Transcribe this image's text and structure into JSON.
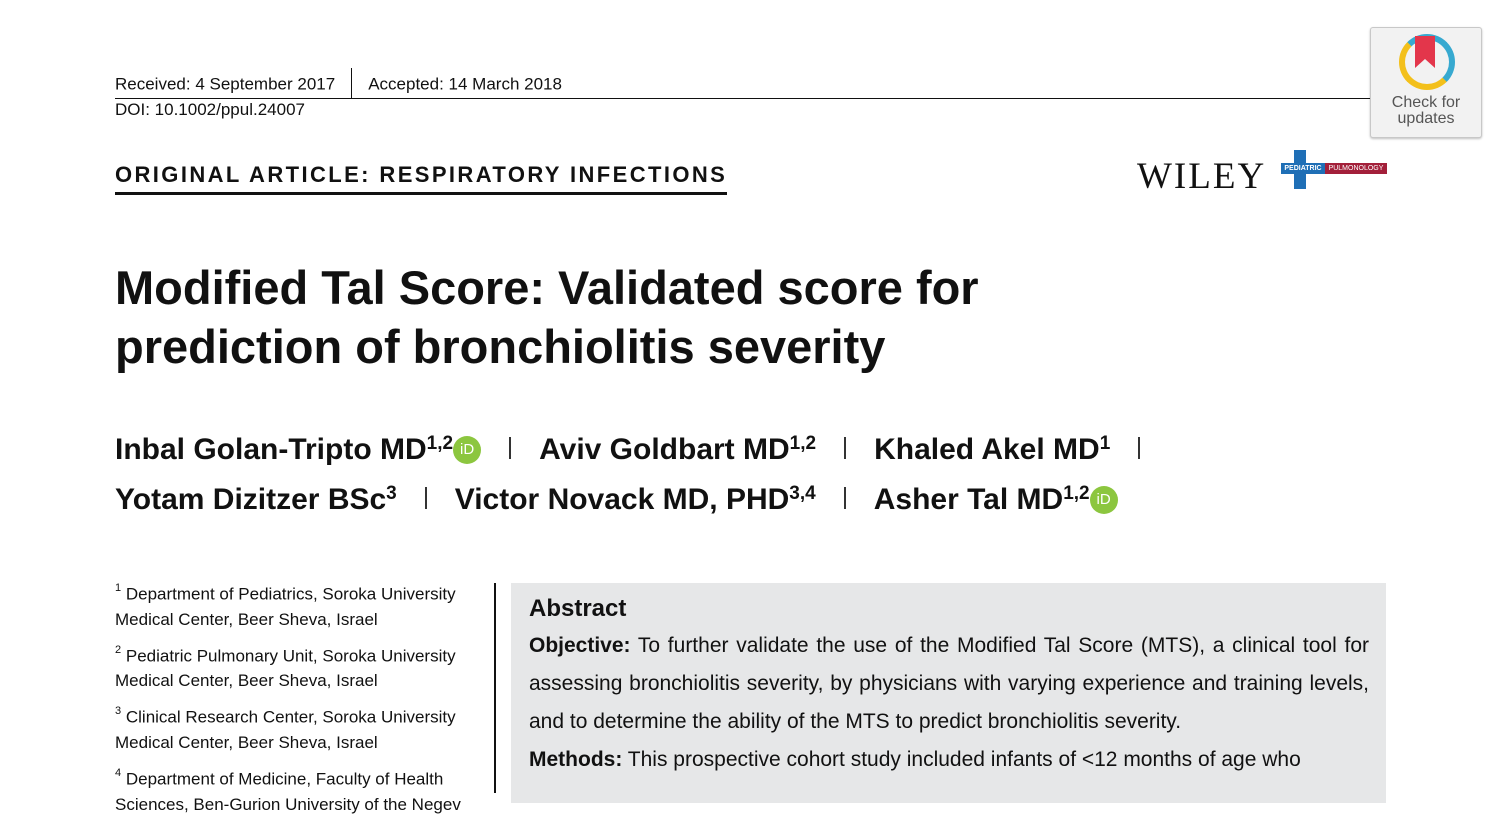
{
  "header": {
    "received": "Received: 4 September 2017",
    "accepted": "Accepted: 14 March 2018",
    "doi": "DOI: 10.1002/ppul.24007",
    "section_label": "ORIGINAL ARTICLE: RESPIRATORY INFECTIONS"
  },
  "badges": {
    "check_for_updates": "Check for updates",
    "publisher": "WILEY",
    "journal_left": "PEDIATRIC",
    "journal_right": "PULMONOLOGY"
  },
  "colors": {
    "orcid_green": "#8cc63f",
    "journal_blue": "#1f6fb6",
    "journal_red": "#a3203a",
    "abstract_bg": "#e6e7e8"
  },
  "article": {
    "title": "Modified Tal Score: Validated score for prediction of bronchiolitis severity"
  },
  "authors": [
    {
      "name": "Inbal Golan-Tripto MD",
      "affil": "1,2",
      "orcid": true
    },
    {
      "name": "Aviv Goldbart MD",
      "affil": "1,2",
      "orcid": false
    },
    {
      "name": "Khaled Akel MD",
      "affil": "1",
      "orcid": false
    },
    {
      "name": "Yotam Dizitzer BSc",
      "affil": "3",
      "orcid": false
    },
    {
      "name": "Victor Novack MD, PHD",
      "affil": "3,4",
      "orcid": false
    },
    {
      "name": "Asher Tal MD",
      "affil": "1,2",
      "orcid": true
    }
  ],
  "orcid_label": "iD",
  "affiliations": [
    {
      "num": "1",
      "text": "Department of Pediatrics, Soroka University Medical Center, Beer Sheva, Israel"
    },
    {
      "num": "2",
      "text": "Pediatric Pulmonary Unit, Soroka University Medical Center, Beer Sheva, Israel"
    },
    {
      "num": "3",
      "text": "Clinical Research Center, Soroka University Medical Center, Beer Sheva, Israel"
    },
    {
      "num": "4",
      "text": "Department of Medicine, Faculty of Health Sciences, Ben-Gurion University of the Negev"
    }
  ],
  "abstract": {
    "heading": "Abstract",
    "objective_label": "Objective:",
    "objective_text": " To further validate the use of the Modified Tal Score (MTS), a clinical tool for assessing bronchiolitis severity, by physicians with varying experience and training levels, and to determine the ability of the MTS to predict bronchiolitis severity.",
    "methods_label": "Methods:",
    "methods_text": " This prospective cohort study included infants of <12 months of age who"
  }
}
